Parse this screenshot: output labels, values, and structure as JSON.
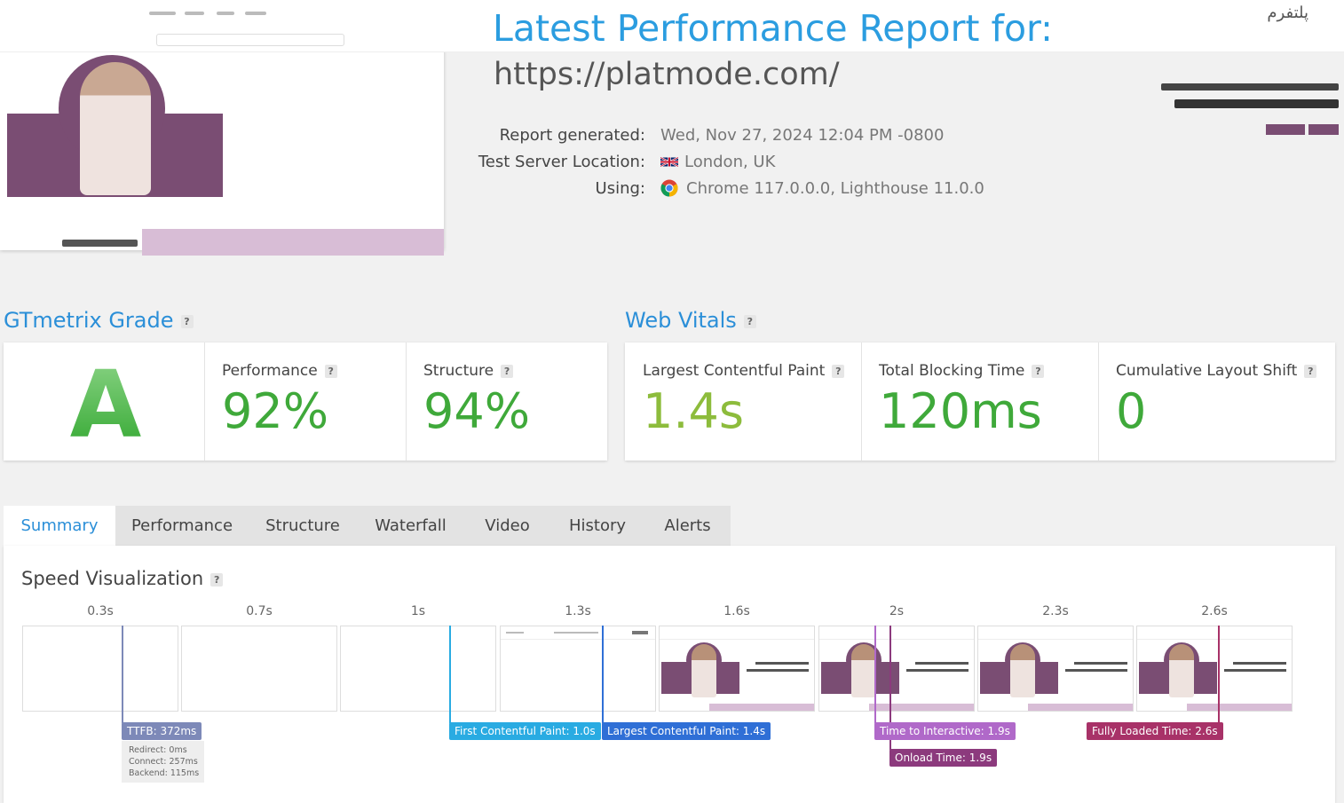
{
  "report": {
    "title": "Latest Performance Report for:",
    "url": "https://platmode.com/",
    "meta": [
      {
        "label": "Report generated:",
        "value": "Wed, Nov 27, 2024 12:04 PM -0800"
      },
      {
        "label": "Test Server Location:",
        "value": "London, UK",
        "icon": "uk-flag-icon"
      },
      {
        "label": "Using:",
        "value": "Chrome 117.0.0.0, Lighthouse 11.0.0",
        "icon": "chrome-icon"
      }
    ]
  },
  "grade": {
    "heading": "GTmetrix Grade",
    "letter": "A",
    "performance": {
      "label": "Performance",
      "value": "92%"
    },
    "structure": {
      "label": "Structure",
      "value": "94%"
    }
  },
  "vitals": {
    "heading": "Web Vitals",
    "lcp": {
      "label": "Largest Contentful Paint",
      "value": "1.4s"
    },
    "tbt": {
      "label": "Total Blocking Time",
      "value": "120ms"
    },
    "cls": {
      "label": "Cumulative Layout Shift",
      "value": "0"
    }
  },
  "tabs": [
    "Summary",
    "Performance",
    "Structure",
    "Waterfall",
    "Video",
    "History",
    "Alerts"
  ],
  "active_tab": "Summary",
  "speed": {
    "heading": "Speed Visualization",
    "frame_times": [
      "0.3s",
      "0.7s",
      "1s",
      "1.3s",
      "1.6s",
      "2s",
      "2.3s",
      "2.6s"
    ],
    "markers": {
      "ttfb": "TTFB: 372ms",
      "fcp": "First Contentful Paint: 1.0s",
      "lcp": "Largest Contentful Paint: 1.4s",
      "tti": "Time to Interactive: 1.9s",
      "onload": "Onload Time: 1.9s",
      "fully_loaded": "Fully Loaded Time: 2.6s"
    },
    "ttfb_breakdown": {
      "redirect": "Redirect: 0ms",
      "connect": "Connect: 257ms",
      "backend": "Backend: 115ms"
    }
  },
  "colors": {
    "accent": "#2b8fd8",
    "grade_green": "#3fa93a",
    "ttfb": "#7d89b8",
    "fcp": "#29abe2",
    "lcp": "#2f6fd6",
    "tti": "#b069c9",
    "onload": "#8c3a7d",
    "fully_loaded": "#a83268"
  }
}
